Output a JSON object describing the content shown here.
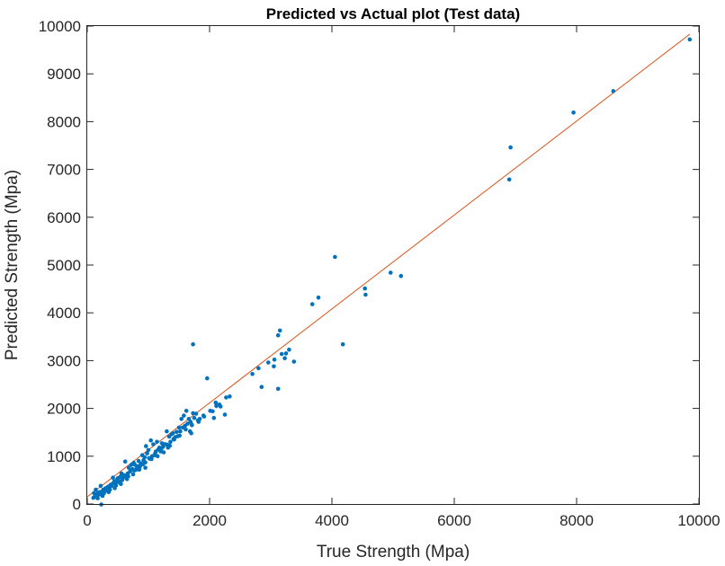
{
  "chart_data": {
    "type": "scatter",
    "title": "Predicted vs Actual plot (Test data)",
    "xlabel": "True Strength (Mpa)",
    "ylabel": "Predicted Strength (Mpa)",
    "xlim": [
      0,
      10000
    ],
    "ylim": [
      0,
      10000
    ],
    "xticks": [
      0,
      2000,
      4000,
      6000,
      8000,
      10000
    ],
    "yticks": [
      0,
      1000,
      2000,
      3000,
      4000,
      5000,
      6000,
      7000,
      8000,
      9000,
      10000
    ],
    "grid": false,
    "colors": {
      "points": "#0072BD",
      "fit_line": "#D95319"
    },
    "fit_line": {
      "x": [
        0,
        9850
      ],
      "y": [
        150,
        9830
      ]
    },
    "series": [
      {
        "values": [
          [
            9850,
            9720
          ],
          [
            8600,
            8640
          ],
          [
            7950,
            8190
          ],
          [
            6920,
            7460
          ],
          [
            6900,
            6790
          ],
          [
            5130,
            4770
          ],
          [
            4960,
            4840
          ],
          [
            4540,
            4510
          ],
          [
            4550,
            4380
          ],
          [
            4050,
            5170
          ],
          [
            3780,
            4320
          ],
          [
            3680,
            4180
          ],
          [
            4180,
            3340
          ],
          [
            3380,
            2980
          ],
          [
            3300,
            3230
          ],
          [
            3250,
            3150
          ],
          [
            3230,
            3050
          ],
          [
            3180,
            3140
          ],
          [
            3150,
            3630
          ],
          [
            3120,
            3530
          ],
          [
            3060,
            3020
          ],
          [
            3050,
            2880
          ],
          [
            2960,
            2960
          ],
          [
            2850,
            2450
          ],
          [
            2800,
            2840
          ],
          [
            2700,
            2720
          ],
          [
            3120,
            2410
          ],
          [
            2330,
            2250
          ],
          [
            2270,
            2230
          ],
          [
            2250,
            1870
          ],
          [
            2180,
            2040
          ],
          [
            2160,
            2080
          ],
          [
            2100,
            2120
          ],
          [
            2070,
            1800
          ],
          [
            2050,
            1940
          ],
          [
            1960,
            2630
          ],
          [
            1730,
            3340
          ],
          [
            1900,
            1850
          ],
          [
            1840,
            1780
          ],
          [
            1820,
            1720
          ],
          [
            1780,
            1890
          ],
          [
            1750,
            1800
          ],
          [
            1730,
            1900
          ],
          [
            1710,
            1650
          ],
          [
            1700,
            1480
          ],
          [
            1690,
            1720
          ],
          [
            1680,
            1520
          ],
          [
            1660,
            1780
          ],
          [
            1640,
            1680
          ],
          [
            1620,
            1950
          ],
          [
            1600,
            1640
          ],
          [
            1580,
            1850
          ],
          [
            1560,
            1600
          ],
          [
            1540,
            1780
          ],
          [
            1520,
            1520
          ],
          [
            1500,
            1600
          ],
          [
            1480,
            1420
          ],
          [
            1460,
            1510
          ],
          [
            1440,
            1400
          ],
          [
            1420,
            1350
          ],
          [
            1400,
            1480
          ],
          [
            1380,
            1460
          ],
          [
            1360,
            1300
          ],
          [
            1340,
            1410
          ],
          [
            1320,
            1180
          ],
          [
            1300,
            1520
          ],
          [
            1280,
            1250
          ],
          [
            1260,
            1250
          ],
          [
            1240,
            1200
          ],
          [
            1220,
            1270
          ],
          [
            1200,
            1100
          ],
          [
            1180,
            1180
          ],
          [
            1160,
            1140
          ],
          [
            1140,
            1300
          ],
          [
            1120,
            1100
          ],
          [
            1100,
            1020
          ],
          [
            1080,
            1250
          ],
          [
            1060,
            1000
          ],
          [
            1040,
            1330
          ],
          [
            1020,
            950
          ],
          [
            1000,
            1130
          ],
          [
            980,
            1060
          ],
          [
            960,
            1210
          ],
          [
            940,
            980
          ],
          [
            920,
            920
          ],
          [
            900,
            1020
          ],
          [
            880,
            850
          ],
          [
            860,
            780
          ],
          [
            840,
            900
          ],
          [
            820,
            790
          ],
          [
            800,
            720
          ],
          [
            780,
            820
          ],
          [
            760,
            860
          ],
          [
            740,
            730
          ],
          [
            720,
            820
          ],
          [
            700,
            680
          ],
          [
            680,
            760
          ],
          [
            660,
            640
          ],
          [
            640,
            600
          ],
          [
            620,
            890
          ],
          [
            600,
            600
          ],
          [
            580,
            530
          ],
          [
            560,
            640
          ],
          [
            540,
            570
          ],
          [
            520,
            480
          ],
          [
            500,
            540
          ],
          [
            480,
            500
          ],
          [
            460,
            430
          ],
          [
            440,
            470
          ],
          [
            420,
            550
          ],
          [
            400,
            380
          ],
          [
            380,
            400
          ],
          [
            360,
            320
          ],
          [
            340,
            360
          ],
          [
            320,
            280
          ],
          [
            300,
            330
          ],
          [
            280,
            260
          ],
          [
            260,
            300
          ],
          [
            240,
            220
          ],
          [
            220,
            380
          ],
          [
            200,
            200
          ],
          [
            180,
            240
          ],
          [
            160,
            170
          ],
          [
            140,
            300
          ],
          [
            120,
            150
          ],
          [
            100,
            130
          ],
          [
            150,
            200
          ],
          [
            250,
            170
          ],
          [
            350,
            250
          ],
          [
            450,
            330
          ],
          [
            550,
            420
          ],
          [
            650,
            520
          ],
          [
            750,
            620
          ],
          [
            850,
            720
          ],
          [
            950,
            870
          ],
          [
            1150,
            1000
          ],
          [
            1350,
            1220
          ],
          [
            1250,
            1080
          ],
          [
            1050,
            940
          ],
          [
            950,
            760
          ],
          [
            870,
            820
          ],
          [
            770,
            700
          ],
          [
            670,
            580
          ],
          [
            570,
            500
          ],
          [
            470,
            390
          ],
          [
            370,
            300
          ],
          [
            270,
            220
          ],
          [
            170,
            120
          ],
          [
            110,
            230
          ],
          [
            210,
            250
          ],
          [
            310,
            310
          ],
          [
            410,
            420
          ],
          [
            510,
            460
          ],
          [
            610,
            580
          ],
          [
            710,
            700
          ],
          [
            810,
            750
          ],
          [
            910,
            830
          ],
          [
            1010,
            960
          ],
          [
            1110,
            1060
          ],
          [
            1210,
            1150
          ],
          [
            1310,
            1240
          ],
          [
            1410,
            1360
          ],
          [
            1510,
            1430
          ],
          [
            1610,
            1560
          ],
          [
            1710,
            1660
          ],
          [
            1810,
            1750
          ],
          [
            1910,
            1830
          ],
          [
            2010,
            1950
          ],
          [
            2110,
            2050
          ],
          [
            230,
            -10
          ]
        ]
      }
    ]
  }
}
